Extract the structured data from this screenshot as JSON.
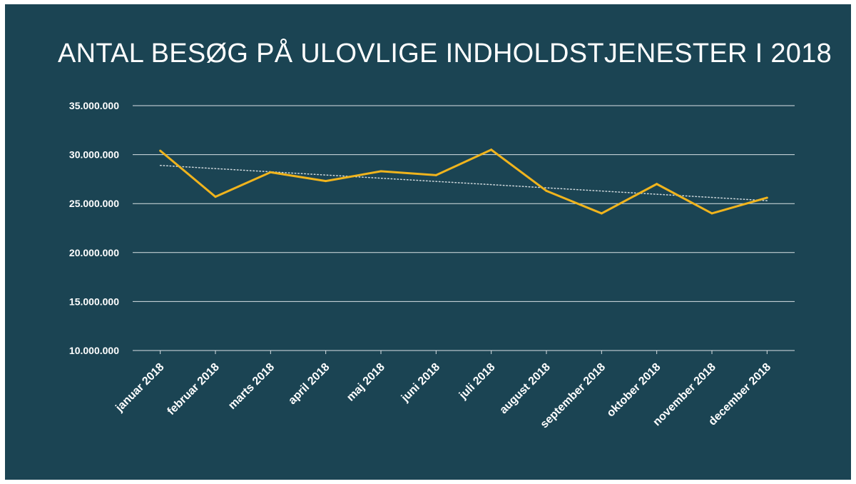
{
  "colors": {
    "background": "#1b4453",
    "gridline": "#d9e1e4",
    "series_line": "#f0b41d",
    "trendline": "#cfd8dc",
    "text": "#ffffff"
  },
  "chart_data": {
    "type": "line",
    "title": "ANTAL BESØG PÅ ULOVLIGE INDHOLDSTJENESTER I 2018",
    "xlabel": "",
    "ylabel": "",
    "ylim": [
      10000000,
      35000000
    ],
    "yticks": [
      10000000,
      15000000,
      20000000,
      25000000,
      30000000,
      35000000
    ],
    "ytick_labels": [
      "10.000.000",
      "15.000.000",
      "20.000.000",
      "25.000.000",
      "30.000.000",
      "35.000.000"
    ],
    "categories": [
      "januar 2018",
      "februar 2018",
      "marts 2018",
      "april 2018",
      "maj 2018",
      "juni 2018",
      "juli 2018",
      "august 2018",
      "september 2018",
      "oktober 2018",
      "november 2018",
      "december 2018"
    ],
    "series": [
      {
        "name": "Antal besøg",
        "values": [
          30400000,
          25700000,
          28200000,
          27300000,
          28300000,
          27900000,
          30500000,
          26300000,
          24000000,
          27000000,
          24000000,
          25600000
        ]
      }
    ],
    "trendline": {
      "type": "linear",
      "style": "dotted",
      "start": 28900000,
      "end": 25300000
    },
    "grid": true,
    "legend": "none"
  }
}
